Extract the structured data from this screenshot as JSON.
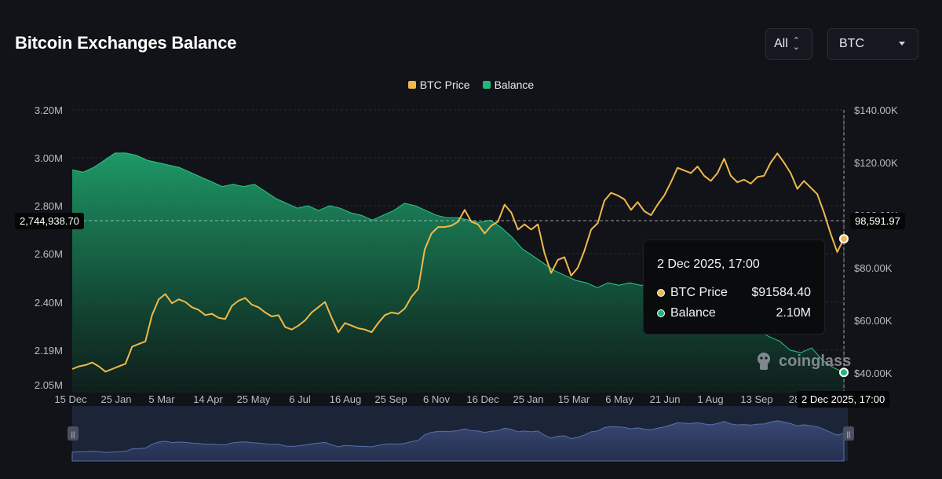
{
  "header": {
    "title": "Bitcoin Exchanges Balance",
    "range_selector": "All",
    "coin_selector": "BTC"
  },
  "legend": [
    {
      "label": "BTC Price",
      "color": "#f0b94a"
    },
    {
      "label": "Balance",
      "color": "#1fb87a"
    }
  ],
  "tooltip": {
    "date": "2 Dec 2025, 17:00",
    "rows": [
      {
        "label": "BTC Price",
        "value": "$91584.40",
        "color": "#f0b94a"
      },
      {
        "label": "Balance",
        "value": "2.10M",
        "color": "#1fb87a"
      }
    ]
  },
  "crosshair": {
    "left_value": "2,744,938.70",
    "right_value": "98,591.97",
    "x_value": "2 Dec 2025, 17:00"
  },
  "watermark": "coinglass",
  "chart_data": {
    "type": "line",
    "x_ticks": [
      "15 Dec",
      "25 Jan",
      "5 Mar",
      "14 Apr",
      "25 May",
      "6 Jul",
      "16 Aug",
      "25 Sep",
      "6 Nov",
      "16 Dec",
      "25 Jan",
      "15 Mar",
      "6 May",
      "21 Jun",
      "1 Aug",
      "13 Sep",
      "28"
    ],
    "y_left_ticks": [
      "3.20M",
      "3.00M",
      "2.80M",
      "2.60M",
      "2.40M",
      "2.19M",
      "2.05M"
    ],
    "y_right_ticks": [
      "$140.00K",
      "$120.00K",
      "$100.00K",
      "$80.00K",
      "$60.00K",
      "$40.00K"
    ],
    "y_left_range": [
      2050000,
      3200000
    ],
    "y_right_range": [
      30000,
      140000
    ],
    "series": [
      {
        "name": "Balance",
        "type": "area",
        "axis": "left",
        "values": [
          2950000,
          2940000,
          2960000,
          2990000,
          3020000,
          3020000,
          3010000,
          2990000,
          2980000,
          2970000,
          2960000,
          2940000,
          2920000,
          2900000,
          2880000,
          2890000,
          2880000,
          2890000,
          2860000,
          2830000,
          2810000,
          2790000,
          2800000,
          2780000,
          2800000,
          2790000,
          2770000,
          2760000,
          2740000,
          2760000,
          2780000,
          2810000,
          2800000,
          2780000,
          2760000,
          2750000,
          2750000,
          2740000,
          2730000,
          2740000,
          2710000,
          2670000,
          2620000,
          2590000,
          2560000,
          2530000,
          2510000,
          2490000,
          2480000,
          2460000,
          2480000,
          2470000,
          2480000,
          2470000,
          2470000,
          2460000,
          2460000,
          2450000,
          2420000,
          2410000,
          2380000,
          2350000,
          2330000,
          2310000,
          2280000,
          2250000,
          2230000,
          2190000,
          2180000,
          2200000,
          2150000,
          2120000,
          2100000
        ]
      },
      {
        "name": "BTC Price",
        "type": "line",
        "axis": "right",
        "values": [
          41500,
          42500,
          43000,
          44000,
          42500,
          40500,
          41500,
          42500,
          43500,
          50000,
          51000,
          52000,
          62000,
          68000,
          70000,
          66500,
          68000,
          67000,
          65000,
          64000,
          62000,
          62500,
          61000,
          60500,
          65500,
          67500,
          68500,
          66000,
          65000,
          63000,
          61500,
          62000,
          57500,
          56500,
          58000,
          60000,
          63000,
          65000,
          67000,
          61000,
          55500,
          59000,
          58000,
          57000,
          56500,
          55500,
          59000,
          62000,
          63000,
          62500,
          64500,
          69000,
          72000,
          87000,
          93000,
          95500,
          95500,
          96000,
          97500,
          102000,
          97500,
          96500,
          93000,
          96000,
          97500,
          104000,
          101000,
          94500,
          96500,
          94500,
          96500,
          85500,
          78000,
          83000,
          84000,
          77000,
          80000,
          86500,
          94500,
          97000,
          105500,
          108500,
          107500,
          106000,
          102000,
          105000,
          101500,
          100000,
          104000,
          107500,
          112500,
          118000,
          117000,
          116000,
          118500,
          115000,
          113000,
          116000,
          121500,
          115000,
          112500,
          113500,
          112000,
          114500,
          115000,
          120000,
          123500,
          120000,
          116000,
          110000,
          113000,
          110500,
          108000,
          101000,
          93000,
          86000,
          91000
        ]
      }
    ],
    "grid": true,
    "legend_position": "top-center"
  }
}
